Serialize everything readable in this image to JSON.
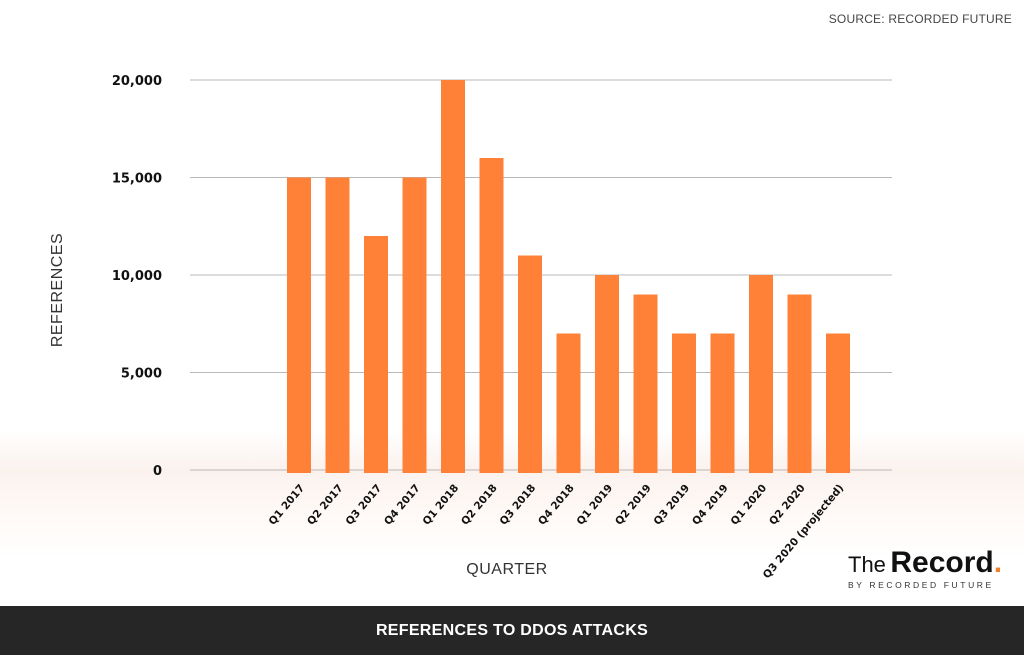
{
  "source": "SOURCE: RECORDED FUTURE",
  "logo": {
    "the": "The",
    "record": "Record",
    "dot": ".",
    "sub": "BY RECORDED FUTURE"
  },
  "footer_title": "REFERENCES TO DDOS ATTACKS",
  "colors": {
    "bar": "#ff8138",
    "grid": "#b8b8b8",
    "footer_bg": "#262626",
    "accent": "#f0812b"
  },
  "chart_data": {
    "type": "bar",
    "title": "REFERENCES TO DDOS ATTACKS",
    "xlabel": "QUARTER",
    "ylabel": "REFERENCES",
    "ylim": [
      0,
      20000
    ],
    "yticks": [
      0,
      5000,
      10000,
      15000,
      20000
    ],
    "ytick_labels": [
      "0",
      "5,000",
      "10,000",
      "15,000",
      "20,000"
    ],
    "grid": true,
    "categories": [
      "Q1 2017",
      "Q2 2017",
      "Q3 2017",
      "Q4 2017",
      "Q1 2018",
      "Q2 2018",
      "Q3 2018",
      "Q4 2018",
      "Q1 2019",
      "Q2 2019",
      "Q3 2019",
      "Q4 2019",
      "Q1 2020",
      "Q2 2020",
      "Q3 2020 (projected)"
    ],
    "values": [
      15000,
      15000,
      12000,
      15000,
      20000,
      16000,
      11000,
      7000,
      10000,
      9000,
      7000,
      7000,
      10000,
      9000,
      7000
    ]
  }
}
